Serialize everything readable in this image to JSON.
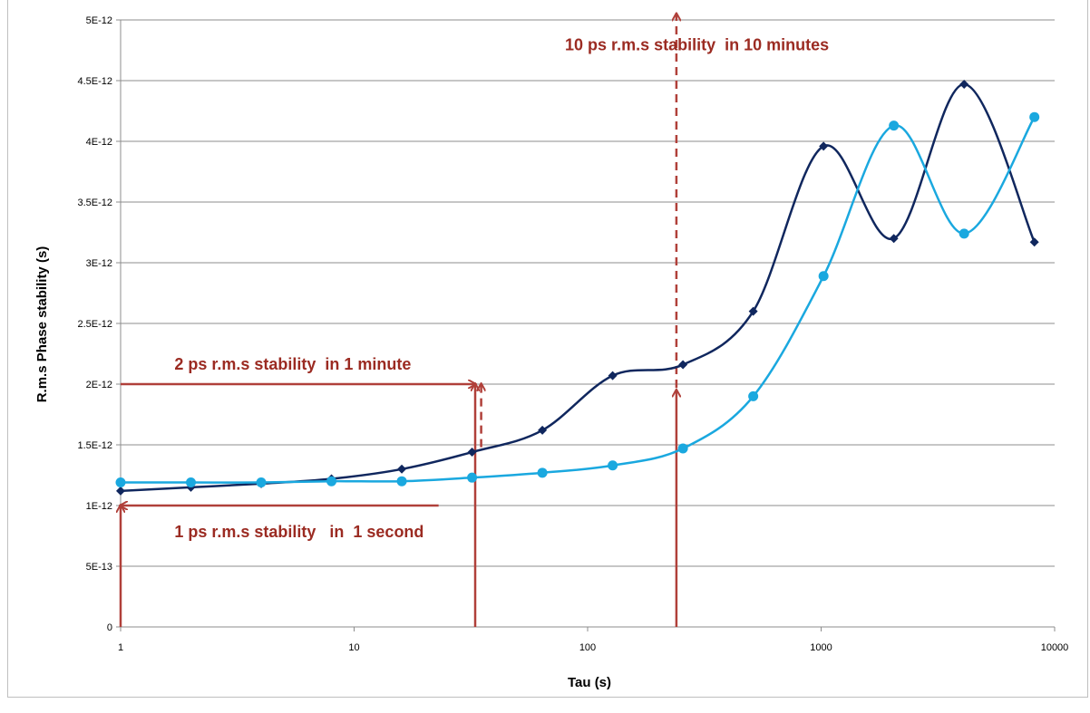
{
  "chart_data": {
    "type": "line",
    "title": "",
    "xlabel": "Tau (s)",
    "ylabel": "R.m.s Phase stability (s)",
    "x_scale": "log",
    "xlim": [
      1,
      10000
    ],
    "ylim": [
      0,
      5e-12
    ],
    "grid": "horizontal",
    "legend": "none",
    "x_ticks": [
      "1",
      "10",
      "100",
      "1000",
      "10000"
    ],
    "y_ticks": [
      "0",
      "5E-13",
      "1E-12",
      "1.5E-12",
      "2E-12",
      "2.5E-12",
      "3E-12",
      "3.5E-12",
      "4E-12",
      "4.5E-12",
      "5E-12"
    ],
    "x": [
      1,
      2,
      4,
      8,
      16,
      32,
      64,
      128,
      256,
      512,
      1024,
      2048,
      4096,
      8192
    ],
    "series": [
      {
        "color": "#10275e",
        "marker": "diamond",
        "values": [
          1.12e-12,
          1.15e-12,
          1.18e-12,
          1.22e-12,
          1.3e-12,
          1.44e-12,
          1.62e-12,
          2.07e-12,
          2.16e-12,
          2.6e-12,
          3.96e-12,
          3.2e-12,
          4.47e-12,
          3.17e-12
        ]
      },
      {
        "color": "#1aa8df",
        "marker": "circle",
        "values": [
          1.19e-12,
          1.19e-12,
          1.19e-12,
          1.2e-12,
          1.2e-12,
          1.23e-12,
          1.27e-12,
          1.33e-12,
          1.47e-12,
          1.9e-12,
          2.89e-12,
          4.13e-12,
          3.24e-12,
          4.2e-12
        ]
      }
    ],
    "annotations": [
      {
        "text": "10 ps r.m.s stability  in 10 minutes",
        "x": 80,
        "y": 4.75e-12
      },
      {
        "text": "2 ps r.m.s stability  in 1 minute",
        "x": 1.7,
        "y": 2.12e-12
      },
      {
        "text": "1 ps r.m.s stability   in  1 second",
        "x": 1.7,
        "y": 7.4e-13
      }
    ],
    "arrows": [
      {
        "from": [
          1,
          0
        ],
        "to": [
          1,
          1e-12
        ],
        "style": "solid"
      },
      {
        "from": [
          23,
          1e-12
        ],
        "to": [
          1,
          1e-12
        ],
        "style": "solid"
      },
      {
        "from": [
          1,
          2e-12
        ],
        "to": [
          33,
          2e-12
        ],
        "style": "solid"
      },
      {
        "from": [
          33,
          0
        ],
        "to": [
          33,
          2e-12
        ],
        "style": "solid"
      },
      {
        "from": [
          35,
          1.48e-12
        ],
        "to": [
          35,
          2e-12
        ],
        "style": "dashed"
      },
      {
        "from": [
          240,
          0
        ],
        "to": [
          240,
          1.95e-12
        ],
        "style": "solid"
      },
      {
        "from": [
          240,
          1.97e-12
        ],
        "to": [
          240,
          5.05e-12
        ],
        "style": "dashed"
      }
    ],
    "annotation_color": "#b0403a"
  }
}
